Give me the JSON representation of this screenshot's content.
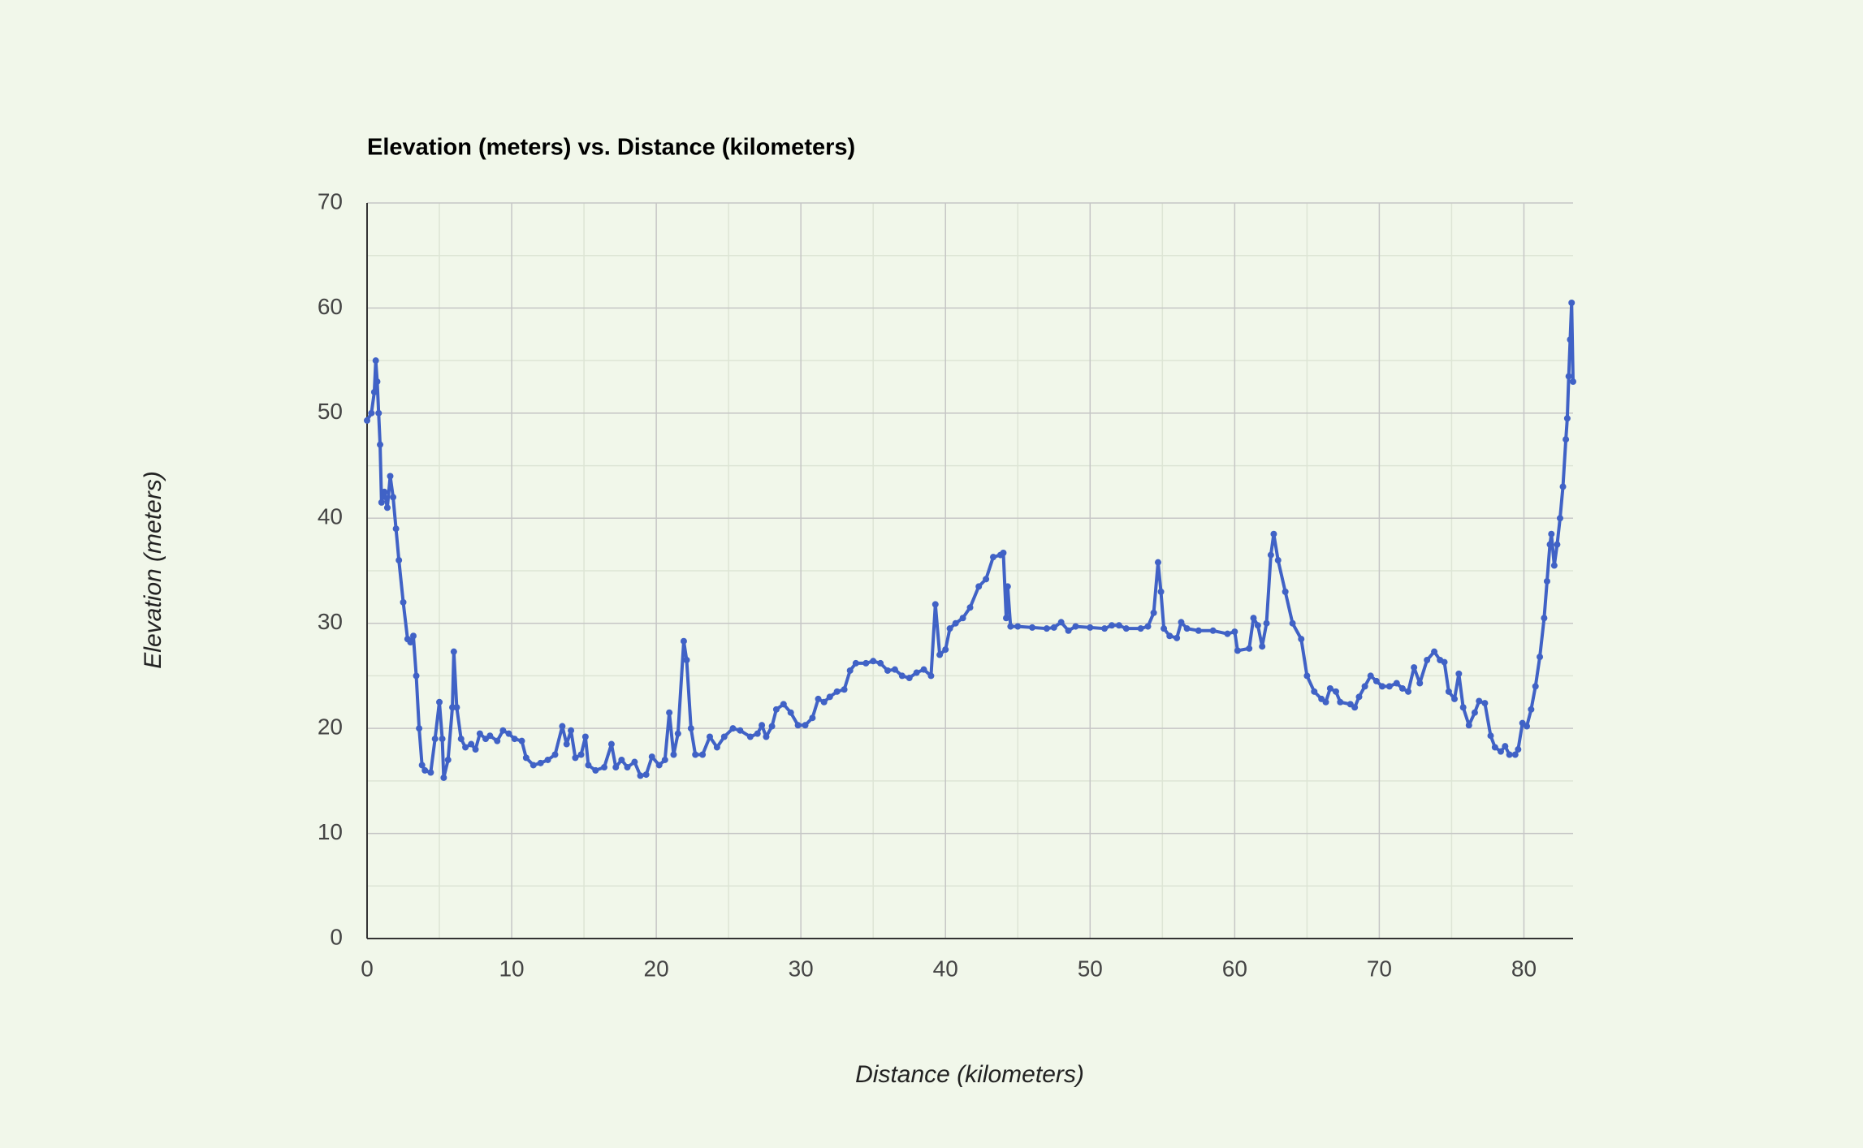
{
  "chart_data": {
    "type": "line",
    "title": "Elevation (meters) vs. Distance (kilometers)",
    "x_label": "Distance (kilometers)",
    "y_label": "Elevation (meters)",
    "xlim": [
      0,
      83.4
    ],
    "ylim": [
      0,
      70
    ],
    "xticks": [
      0,
      10,
      20,
      30,
      40,
      50,
      60,
      70,
      80
    ],
    "yticks": [
      0,
      10,
      20,
      30,
      40,
      50,
      60,
      70
    ],
    "minor_xticks": [
      5,
      15,
      25,
      35,
      45,
      55,
      65,
      75
    ],
    "minor_yticks": [
      5,
      15,
      25,
      35,
      45,
      55,
      65
    ],
    "grid": true,
    "markers": true,
    "series": [
      {
        "name": "Elevation",
        "color": "#4062c6",
        "x": [
          0,
          0.3,
          0.5,
          0.6,
          0.7,
          0.8,
          0.9,
          1.0,
          1.2,
          1.4,
          1.6,
          1.8,
          2.0,
          2.2,
          2.5,
          2.8,
          3.0,
          3.2,
          3.4,
          3.6,
          3.8,
          4.0,
          4.4,
          4.7,
          5.0,
          5.2,
          5.3,
          5.6,
          5.9,
          6.0,
          6.2,
          6.5,
          6.8,
          7.2,
          7.5,
          7.8,
          8.2,
          8.5,
          9.0,
          9.4,
          9.8,
          10.2,
          10.7,
          11.0,
          11.5,
          12.0,
          12.5,
          13.0,
          13.5,
          13.8,
          14.1,
          14.4,
          14.8,
          15.1,
          15.3,
          15.8,
          16.4,
          16.9,
          17.2,
          17.6,
          18.0,
          18.5,
          18.9,
          19.3,
          19.7,
          20.2,
          20.6,
          20.9,
          21.2,
          21.5,
          21.9,
          22.1,
          22.4,
          22.7,
          23.2,
          23.7,
          24.2,
          24.7,
          25.3,
          25.8,
          26.5,
          27.0,
          27.3,
          27.6,
          28.0,
          28.3,
          28.8,
          29.3,
          29.8,
          30.3,
          30.8,
          31.2,
          31.6,
          32.0,
          32.5,
          33.0,
          33.4,
          33.8,
          34.5,
          35.0,
          35.5,
          36.0,
          36.5,
          37.0,
          37.5,
          38.0,
          38.5,
          39.0,
          39.3,
          39.6,
          40.0,
          40.3,
          40.7,
          41.2,
          41.7,
          42.3,
          42.8,
          43.3,
          43.8,
          44.0,
          44.2,
          44.3,
          44.5,
          45.0,
          46.0,
          47.0,
          47.5,
          48.0,
          48.5,
          49.0,
          50.0,
          51.0,
          51.5,
          52.0,
          52.5,
          53.5,
          54.0,
          54.4,
          54.7,
          54.9,
          55.1,
          55.5,
          56.0,
          56.3,
          56.7,
          57.5,
          58.5,
          59.5,
          60.0,
          60.2,
          61.0,
          61.3,
          61.6,
          61.9,
          62.2,
          62.5,
          62.7,
          63.0,
          63.5,
          64.0,
          64.6,
          65.0,
          65.5,
          66.0,
          66.3,
          66.6,
          67.0,
          67.3,
          68.0,
          68.3,
          68.6,
          69.0,
          69.4,
          69.8,
          70.2,
          70.7,
          71.2,
          71.6,
          72.0,
          72.4,
          72.8,
          73.3,
          73.8,
          74.2,
          74.5,
          74.8,
          75.2,
          75.5,
          75.8,
          76.2,
          76.6,
          76.9,
          77.3,
          77.7,
          78.0,
          78.4,
          78.7,
          79.0,
          79.4,
          79.6,
          79.9,
          80.2,
          80.5,
          80.8,
          81.1,
          81.4,
          81.6,
          81.8,
          81.9,
          82.1,
          82.3,
          82.5,
          82.7,
          82.9,
          83.0,
          83.1,
          83.2,
          83.3,
          83.4
        ],
        "values": [
          49.3,
          50,
          52,
          55,
          53,
          50,
          47,
          41.5,
          42.5,
          41,
          44,
          42,
          39,
          36,
          32,
          28.5,
          28.2,
          28.8,
          25,
          20,
          16.5,
          16,
          15.8,
          19,
          22.5,
          19,
          15.3,
          17,
          22,
          27.3,
          22,
          19,
          18.2,
          18.5,
          18,
          19.5,
          19,
          19.3,
          18.8,
          19.8,
          19.5,
          19,
          18.8,
          17.2,
          16.5,
          16.7,
          17,
          17.5,
          20.2,
          18.5,
          19.8,
          17.2,
          17.5,
          19.2,
          16.5,
          16,
          16.3,
          18.5,
          16.3,
          17,
          16.3,
          16.8,
          15.5,
          15.6,
          17.3,
          16.5,
          17,
          21.5,
          17.5,
          19.5,
          28.3,
          26.5,
          20,
          17.5,
          17.5,
          19.2,
          18.2,
          19.2,
          20,
          19.8,
          19.2,
          19.5,
          20.3,
          19.2,
          20.2,
          21.8,
          22.3,
          21.5,
          20.3,
          20.3,
          21,
          22.8,
          22.5,
          23,
          23.5,
          23.7,
          25.5,
          26.2,
          26.2,
          26.4,
          26.2,
          25.5,
          25.6,
          25,
          24.8,
          25.3,
          25.6,
          25,
          31.8,
          27,
          27.5,
          29.5,
          30,
          30.5,
          31.5,
          33.5,
          34.2,
          36.3,
          36.5,
          36.7,
          30.5,
          33.5,
          29.7,
          29.7,
          29.6,
          29.5,
          29.6,
          30.1,
          29.3,
          29.7,
          29.6,
          29.5,
          29.8,
          29.8,
          29.5,
          29.5,
          29.7,
          31,
          35.8,
          33,
          29.5,
          28.8,
          28.6,
          30.1,
          29.5,
          29.3,
          29.3,
          29,
          29.2,
          27.4,
          27.6,
          30.5,
          29.8,
          27.8,
          30,
          36.5,
          38.5,
          36,
          33,
          30,
          28.5,
          25,
          23.5,
          22.8,
          22.5,
          23.8,
          23.5,
          22.5,
          22.3,
          22,
          23,
          24,
          25,
          24.5,
          24,
          24,
          24.3,
          23.8,
          23.5,
          25.8,
          24.3,
          26.5,
          27.3,
          26.5,
          26.3,
          23.5,
          22.8,
          25.2,
          22,
          20.3,
          21.5,
          22.6,
          22.4,
          19.3,
          18.2,
          17.8,
          18.3,
          17.5,
          17.5,
          18,
          20.5,
          20.2,
          21.8,
          24,
          26.8,
          30.5,
          34,
          37.5,
          38.5,
          35.5,
          37.5,
          40,
          43,
          47.5,
          49.5,
          53.5,
          57,
          60.5,
          53
        ]
      }
    ]
  }
}
